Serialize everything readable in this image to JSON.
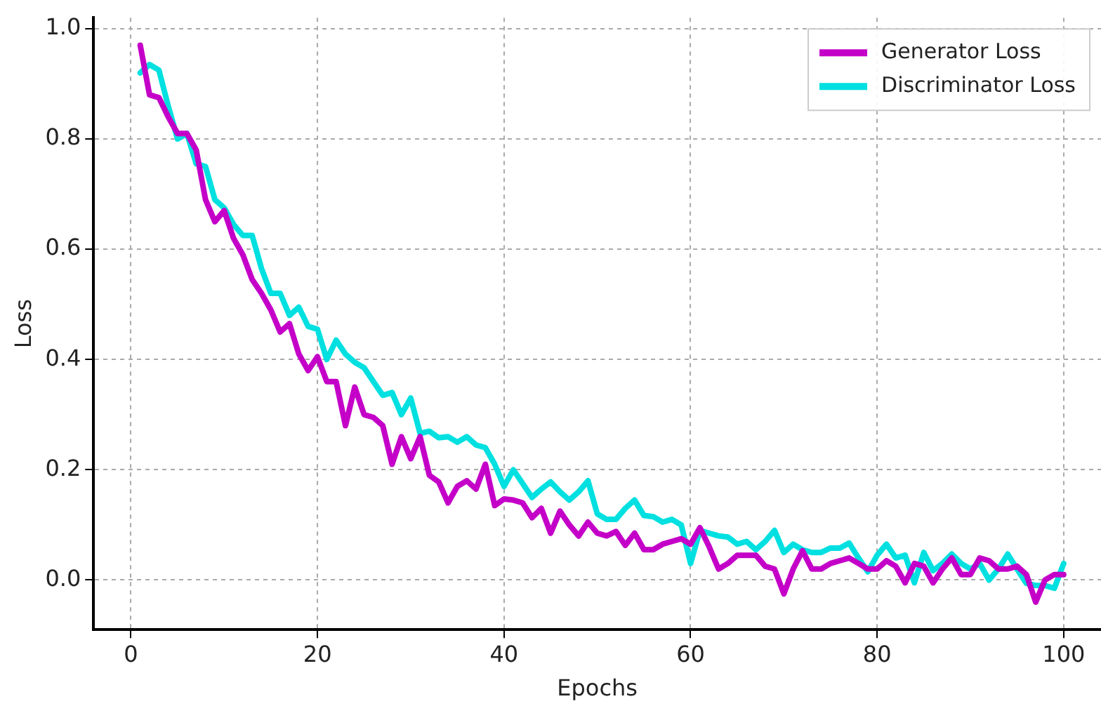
{
  "chart_data": {
    "type": "line",
    "xlabel": "Epochs",
    "ylabel": "Loss",
    "x": [
      1,
      2,
      3,
      4,
      5,
      6,
      7,
      8,
      9,
      10,
      11,
      12,
      13,
      14,
      15,
      16,
      17,
      18,
      19,
      20,
      21,
      22,
      23,
      24,
      25,
      26,
      27,
      28,
      29,
      30,
      31,
      32,
      33,
      34,
      35,
      36,
      37,
      38,
      39,
      40,
      41,
      42,
      43,
      44,
      45,
      46,
      47,
      48,
      49,
      50,
      51,
      52,
      53,
      54,
      55,
      56,
      57,
      58,
      59,
      60,
      61,
      62,
      63,
      64,
      65,
      66,
      67,
      68,
      69,
      70,
      71,
      72,
      73,
      74,
      75,
      76,
      77,
      78,
      79,
      80,
      81,
      82,
      83,
      84,
      85,
      86,
      87,
      88,
      89,
      90,
      91,
      92,
      93,
      94,
      95,
      96,
      97,
      98,
      99,
      100
    ],
    "series": [
      {
        "name": "Generator Loss",
        "color": "#c400c8",
        "values": [
          0.97,
          0.88,
          0.875,
          0.84,
          0.81,
          0.81,
          0.78,
          0.69,
          0.65,
          0.67,
          0.62,
          0.59,
          0.545,
          0.52,
          0.49,
          0.45,
          0.465,
          0.41,
          0.38,
          0.405,
          0.36,
          0.36,
          0.28,
          0.35,
          0.3,
          0.295,
          0.28,
          0.21,
          0.26,
          0.22,
          0.26,
          0.19,
          0.178,
          0.14,
          0.17,
          0.18,
          0.165,
          0.21,
          0.135,
          0.147,
          0.145,
          0.14,
          0.113,
          0.13,
          0.085,
          0.125,
          0.1,
          0.08,
          0.105,
          0.085,
          0.08,
          0.088,
          0.063,
          0.085,
          0.055,
          0.055,
          0.065,
          0.07,
          0.075,
          0.065,
          0.095,
          0.06,
          0.02,
          0.03,
          0.045,
          0.045,
          0.045,
          0.025,
          0.02,
          -0.025,
          0.02,
          0.053,
          0.02,
          0.02,
          0.03,
          0.035,
          0.04,
          0.03,
          0.02,
          0.02,
          0.035,
          0.025,
          -0.005,
          0.03,
          0.025,
          -0.005,
          0.02,
          0.04,
          0.01,
          0.01,
          0.04,
          0.035,
          0.02,
          0.02,
          0.025,
          0.01,
          -0.04,
          0.0,
          0.01,
          0.01
        ]
      },
      {
        "name": "Discriminator Loss",
        "color": "#00e0e0",
        "values": [
          0.92,
          0.935,
          0.925,
          0.86,
          0.8,
          0.81,
          0.755,
          0.75,
          0.69,
          0.675,
          0.645,
          0.625,
          0.625,
          0.565,
          0.52,
          0.52,
          0.48,
          0.495,
          0.46,
          0.455,
          0.4,
          0.435,
          0.41,
          0.395,
          0.385,
          0.36,
          0.335,
          0.34,
          0.3,
          0.33,
          0.266,
          0.27,
          0.258,
          0.26,
          0.25,
          0.26,
          0.245,
          0.24,
          0.21,
          0.17,
          0.2,
          0.175,
          0.15,
          0.165,
          0.178,
          0.16,
          0.145,
          0.16,
          0.18,
          0.12,
          0.11,
          0.11,
          0.13,
          0.145,
          0.117,
          0.115,
          0.105,
          0.11,
          0.1,
          0.03,
          0.09,
          0.085,
          0.08,
          0.078,
          0.065,
          0.07,
          0.055,
          0.07,
          0.09,
          0.05,
          0.065,
          0.055,
          0.05,
          0.05,
          0.058,
          0.058,
          0.067,
          0.04,
          0.015,
          0.045,
          0.065,
          0.04,
          0.045,
          -0.005,
          0.05,
          0.017,
          0.03,
          0.047,
          0.03,
          0.02,
          0.03,
          0.0,
          0.02,
          0.047,
          0.02,
          -0.006,
          -0.01,
          -0.01,
          -0.015,
          0.03
        ]
      }
    ],
    "xlim": [
      -4,
      104
    ],
    "xticks": [
      0,
      20,
      40,
      60,
      80,
      100
    ],
    "ylim": [
      -0.09,
      1.02
    ],
    "yticks": [
      {
        "value": 0,
        "label": "0.0"
      },
      {
        "value": 0.2,
        "label": "0.2"
      },
      {
        "value": 0.4,
        "label": "0.4"
      },
      {
        "value": 0.6,
        "label": "0.6"
      },
      {
        "value": 0.8,
        "label": "0.8"
      },
      {
        "value": 1,
        "label": "1.0"
      }
    ],
    "grid": true,
    "legend": "top right",
    "marker": "none",
    "line_style": "solid"
  }
}
